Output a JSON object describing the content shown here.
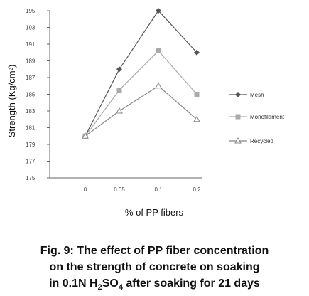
{
  "chart_data": {
    "type": "line",
    "title": "",
    "xlabel": "% of PP fibers",
    "ylabel": "Strength (Kg/cm²)",
    "categories": [
      "0",
      "0.05",
      "0.1",
      "0.2"
    ],
    "ylim": [
      175,
      195
    ],
    "yticks": [
      175,
      177,
      179,
      181,
      183,
      185,
      187,
      189,
      191,
      193,
      195
    ],
    "ytick_labels": [
      "175",
      "177",
      "179",
      "181",
      "183",
      "185",
      "187",
      "189",
      "191",
      "193",
      "195"
    ],
    "grid": false,
    "legend_position": "right",
    "series": [
      {
        "name": "Mesh",
        "marker": "diamond",
        "color": "#555555",
        "values": [
          180,
          188,
          195,
          190
        ]
      },
      {
        "name": "Monofilament",
        "marker": "square",
        "color": "#aaaaaa",
        "values": [
          180,
          185.5,
          190.2,
          185
        ]
      },
      {
        "name": "Recycled",
        "marker": "triangle",
        "color": "#888888",
        "values": [
          180,
          183,
          186,
          182
        ]
      }
    ]
  },
  "caption": {
    "line1": "Fig. 9: The effect of PP fiber concentration",
    "line2": "on the strength of concrete on soaking",
    "line3_pre": "in 0.1N H",
    "line3_sub1": "2",
    "line3_mid": "SO",
    "line3_sub2": "4",
    "line3_post": " after soaking for 21 days"
  }
}
